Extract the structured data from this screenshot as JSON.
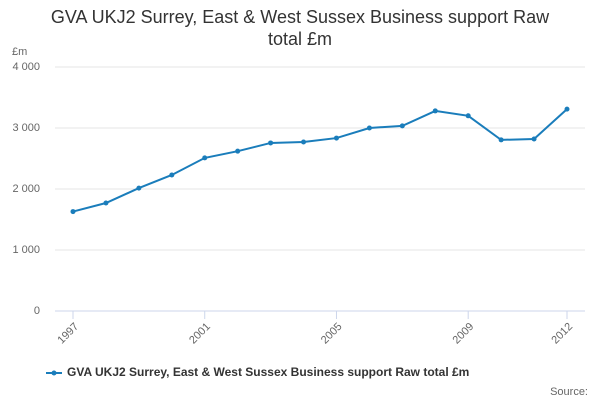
{
  "chart_data": {
    "type": "line",
    "title": "GVA UKJ2 Surrey, East & West Sussex Business support Raw total £m",
    "y_unit": "£m",
    "source": "Source:",
    "x": [
      1997,
      1998,
      1999,
      2000,
      2001,
      2002,
      2003,
      2004,
      2005,
      2006,
      2007,
      2008,
      2009,
      2010,
      2011,
      2012
    ],
    "series": [
      {
        "name": "GVA UKJ2 Surrey, East & West Sussex Business support Raw total £m",
        "color": "#1a7dbb",
        "values": [
          1630,
          1770,
          2015,
          2230,
          2510,
          2620,
          2755,
          2770,
          2835,
          3000,
          3035,
          3280,
          3200,
          2805,
          2820,
          3310
        ]
      }
    ],
    "xlim": [
      1997,
      2012
    ],
    "xticks": [
      1997,
      2001,
      2005,
      2009,
      2012
    ],
    "ylim": [
      0,
      4000
    ],
    "yticks": [
      0,
      {
        "value": 1000,
        "label": "1 000"
      },
      {
        "value": 2000,
        "label": "2 000"
      },
      {
        "value": 3000,
        "label": "3 000"
      },
      {
        "value": 4000,
        "label": "4 000"
      }
    ],
    "grid": true,
    "legend": "bottom"
  }
}
